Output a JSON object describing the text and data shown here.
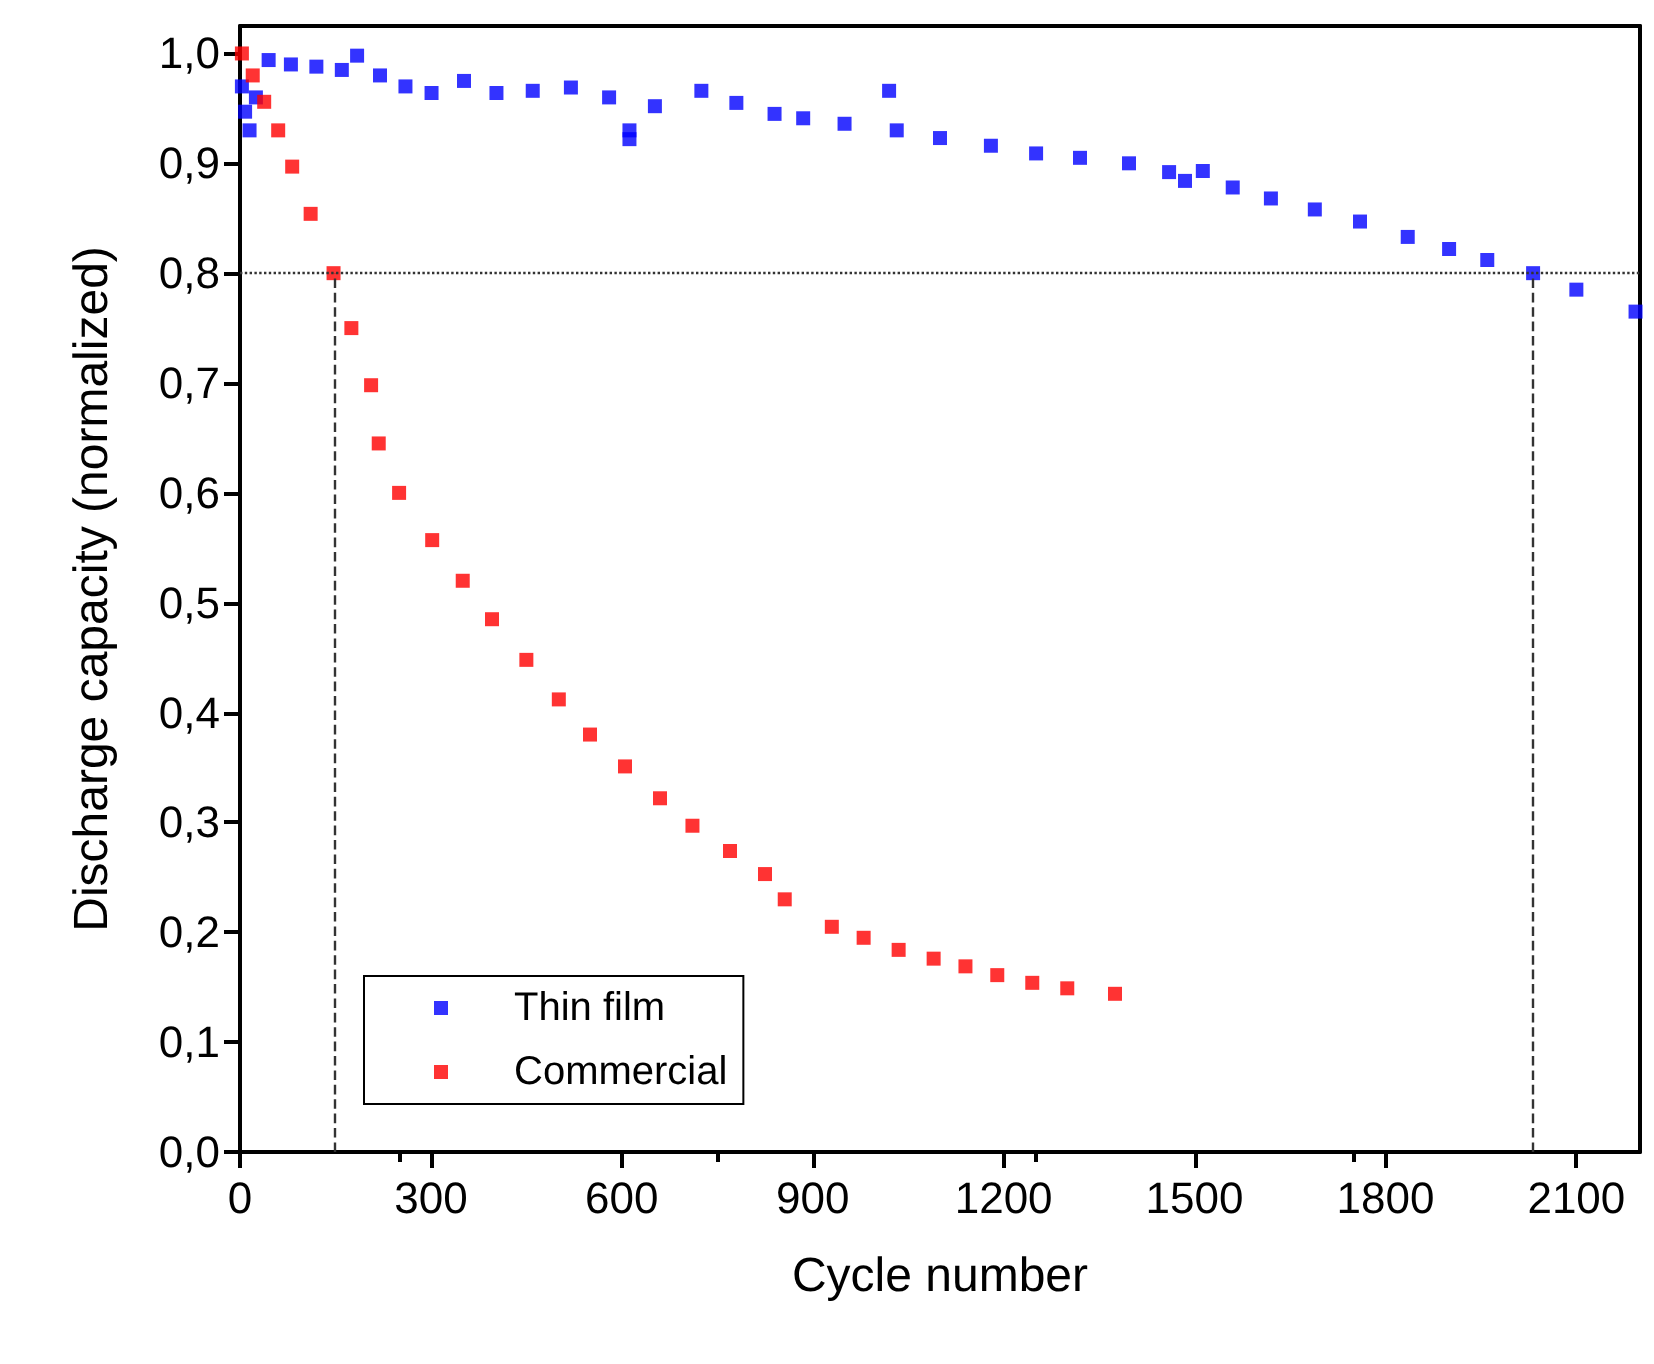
{
  "chart_data": {
    "type": "scatter",
    "xlabel": "Cycle number",
    "ylabel": "Discharge capacity (normalized)",
    "xlim": [
      0,
      2200
    ],
    "xticks": [
      0,
      300,
      600,
      900,
      1200,
      1500,
      1800,
      2100
    ],
    "ylim": [
      0,
      1.025
    ],
    "yticks": [
      {
        "value": 0,
        "label": "0,0"
      },
      {
        "value": 0.1,
        "label": "0,1"
      },
      {
        "value": 0.2,
        "label": "0,2"
      },
      {
        "value": 0.3,
        "label": "0,3"
      },
      {
        "value": 0.4,
        "label": "0,4"
      },
      {
        "value": 0.5,
        "label": "0,5"
      },
      {
        "value": 0.6,
        "label": "0,6"
      },
      {
        "value": 0.7,
        "label": "0,7"
      },
      {
        "value": 0.8,
        "label": "0,8"
      },
      {
        "value": 0.9,
        "label": "0,9"
      },
      {
        "value": 1.0,
        "label": "1,0"
      }
    ],
    "marker": "square",
    "grid": false,
    "legend": "bottom left",
    "series": [
      {
        "name": "Thin film",
        "color": "#0000ff",
        "x": [
          3,
          8,
          15,
          25,
          45,
          80,
          120,
          160,
          184,
          220,
          260,
          301,
          352,
          403,
          460,
          520,
          580,
          612,
          612,
          652,
          725,
          780,
          840,
          885,
          950,
          1020,
          1032,
          1100,
          1180,
          1251,
          1320,
          1397,
          1460,
          1485,
          1513,
          1560,
          1620,
          1689,
          1760,
          1835,
          1900,
          1960,
          2032,
          2100,
          2193
        ],
        "values": [
          0.97,
          0.947,
          0.93,
          0.96,
          0.994,
          0.99,
          0.988,
          0.985,
          0.998,
          0.98,
          0.97,
          0.964,
          0.975,
          0.964,
          0.966,
          0.969,
          0.96,
          0.93,
          0.922,
          0.952,
          0.966,
          0.955,
          0.945,
          0.941,
          0.936,
          0.966,
          0.93,
          0.923,
          0.916,
          0.909,
          0.905,
          0.9,
          0.892,
          0.884,
          0.893,
          0.878,
          0.868,
          0.858,
          0.847,
          0.833,
          0.822,
          0.812,
          0.8,
          0.785,
          0.765
        ]
      },
      {
        "name": "Commercial",
        "color": "#ff0000",
        "x": [
          3,
          20,
          38,
          60,
          82,
          111,
          147,
          175,
          206,
          218,
          250,
          302,
          350,
          396,
          450,
          501,
          550,
          605,
          660,
          711,
          770,
          825,
          856,
          930,
          980,
          1035,
          1090,
          1140,
          1190,
          1245,
          1300,
          1375
        ],
        "values": [
          1.0,
          0.98,
          0.956,
          0.93,
          0.897,
          0.854,
          0.8,
          0.75,
          0.698,
          0.645,
          0.6,
          0.557,
          0.52,
          0.485,
          0.448,
          0.412,
          0.38,
          0.351,
          0.322,
          0.297,
          0.274,
          0.253,
          0.23,
          0.205,
          0.195,
          0.184,
          0.176,
          0.169,
          0.161,
          0.154,
          0.149,
          0.144
        ]
      }
    ],
    "ref_lines": [
      {
        "axis": "y",
        "value": 0.8,
        "line_style": "dotted",
        "color": "#333333"
      },
      {
        "axis": "x",
        "value": 150,
        "line_style": "dashed",
        "color": "#333333"
      },
      {
        "axis": "x",
        "value": 2030,
        "line_style": "dashed",
        "color": "#333333"
      }
    ]
  }
}
